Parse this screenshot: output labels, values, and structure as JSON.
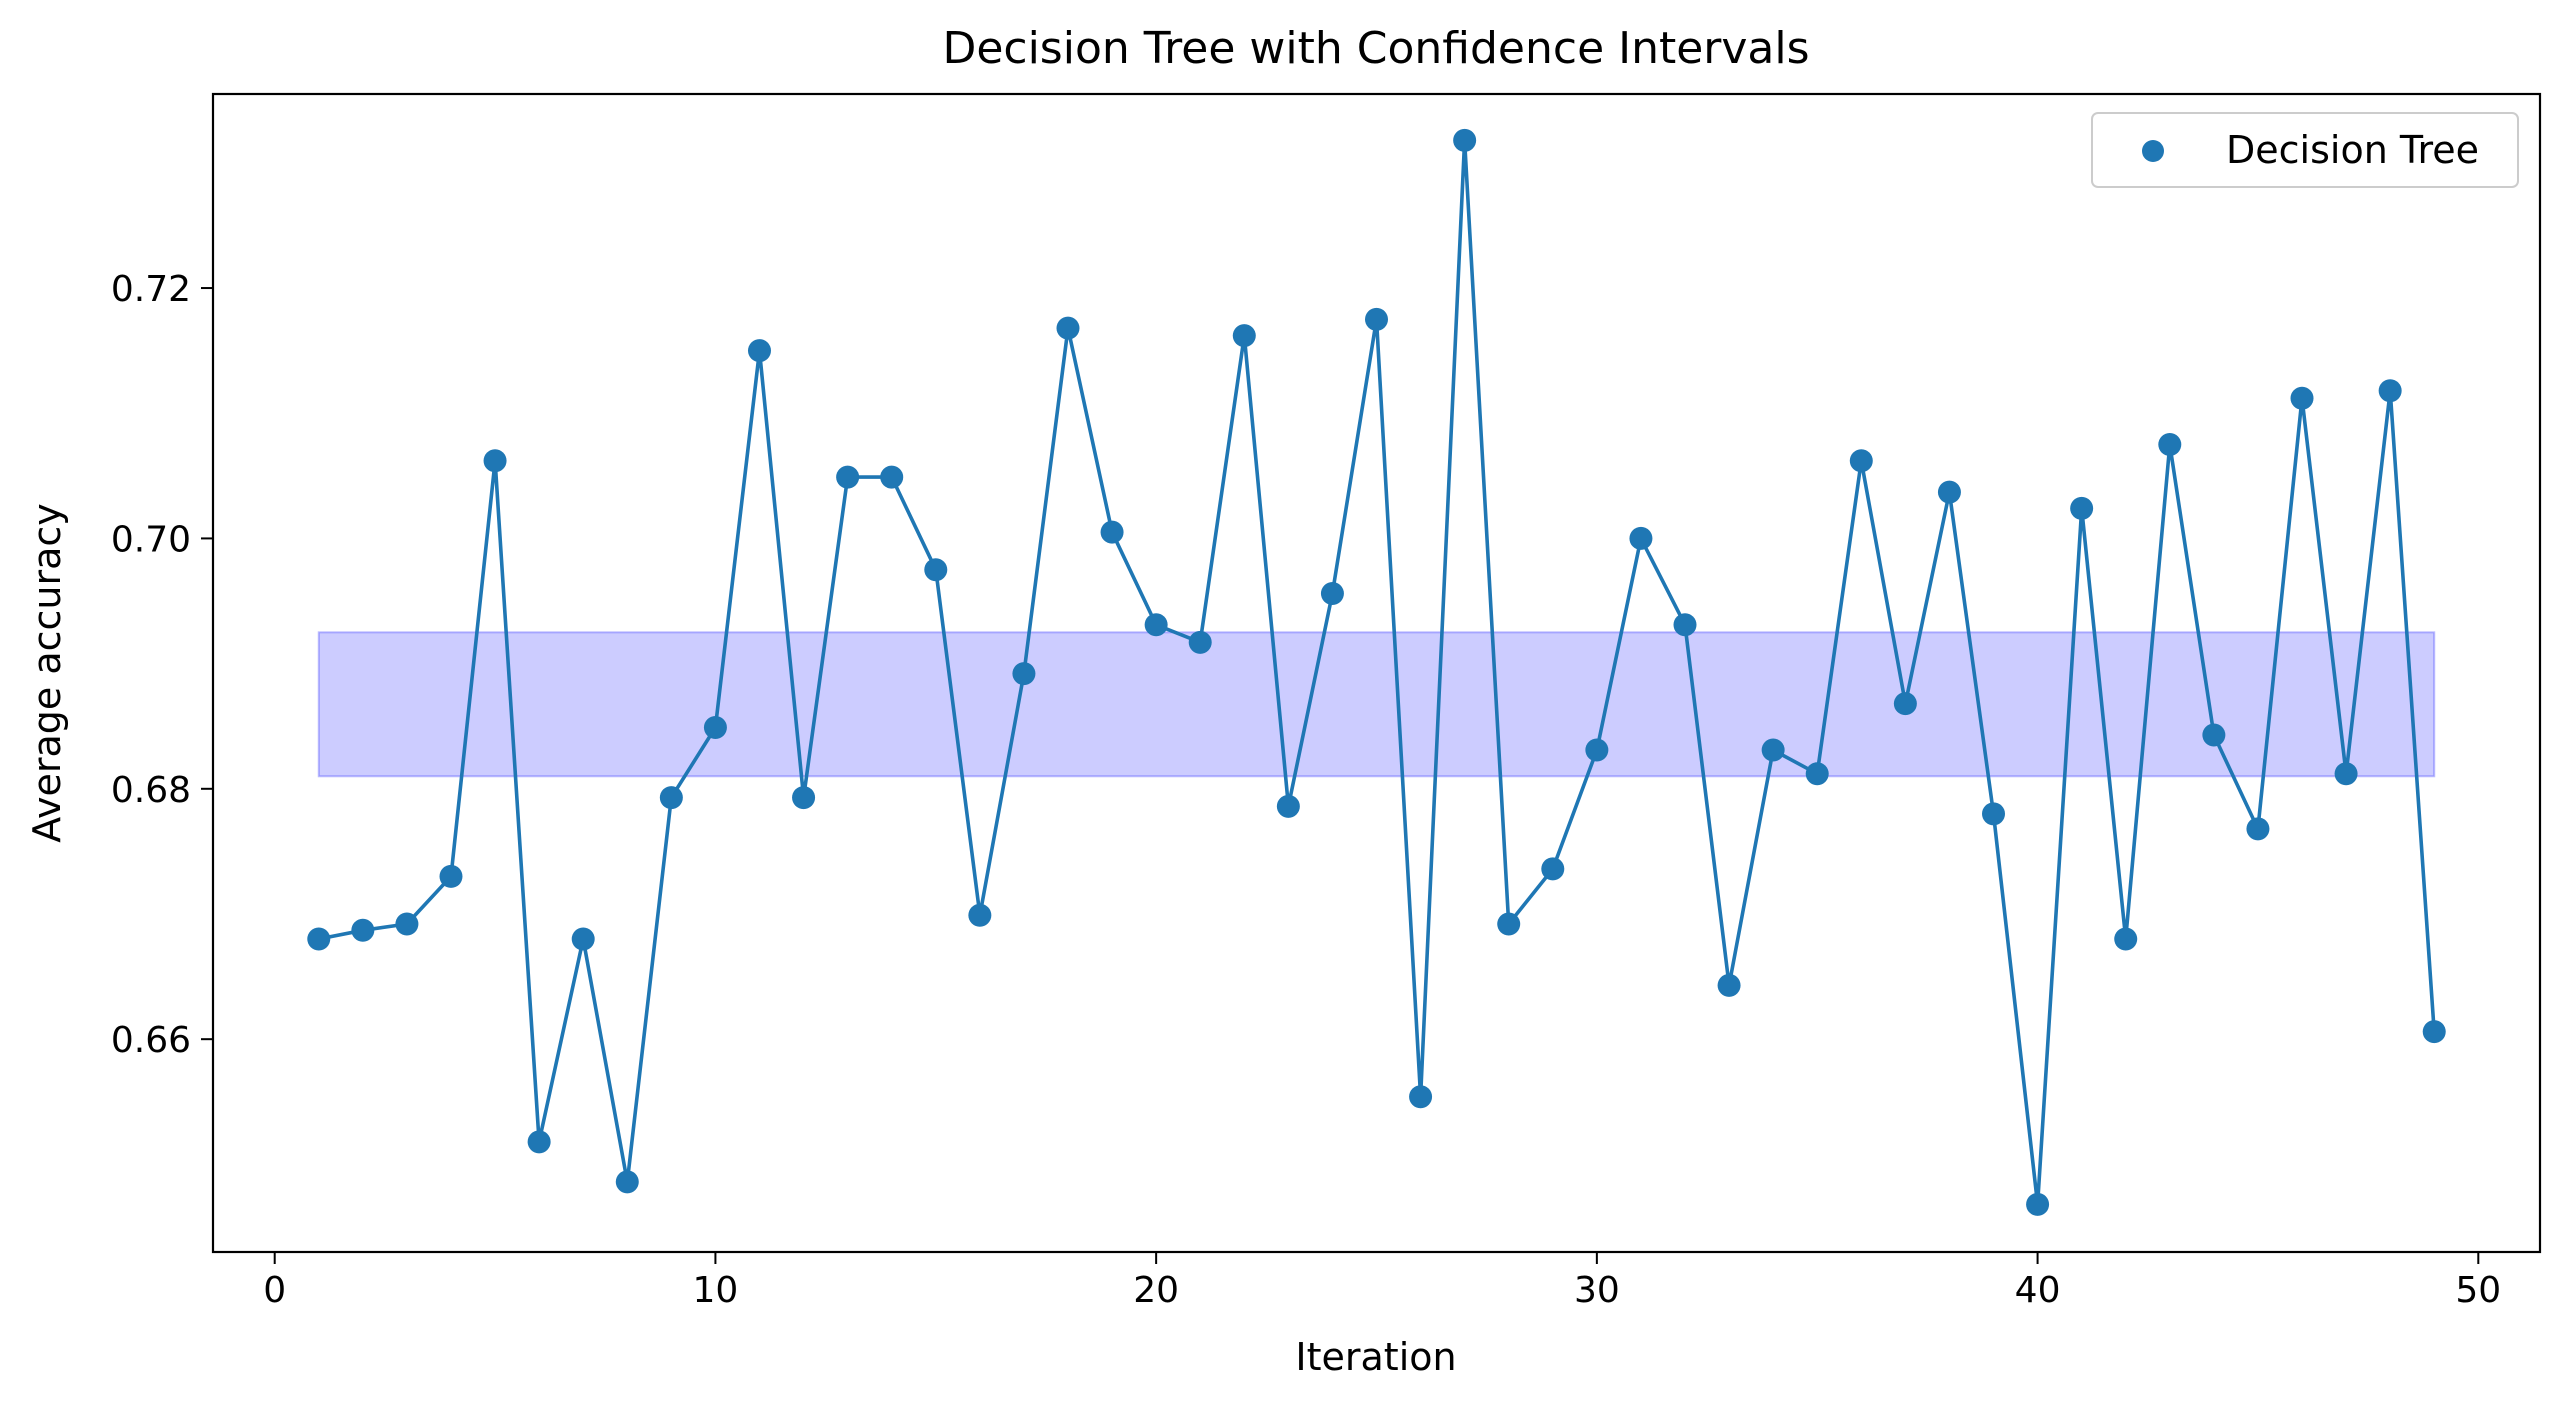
{
  "chart_data": {
    "type": "line",
    "title": "Decision Tree with Confidence Intervals",
    "xlabel": "Iteration",
    "ylabel": "Average accuracy",
    "xlim": [
      -1.4,
      51.4
    ],
    "ylim": [
      0.643,
      0.7355
    ],
    "x_ticks": [
      0,
      10,
      20,
      30,
      40,
      50
    ],
    "x_tick_labels": [
      "0",
      "10",
      "20",
      "30",
      "40",
      "50"
    ],
    "y_ticks": [
      0.66,
      0.68,
      0.7,
      0.72
    ],
    "y_tick_labels": [
      "0.66",
      "0.68",
      "0.70",
      "0.72"
    ],
    "grid": false,
    "legend": {
      "position": "top-right",
      "entries": [
        "Decision Tree"
      ]
    },
    "confidence_band": {
      "x_start": 1,
      "x_end": 49,
      "lower": 0.681,
      "upper": 0.6925,
      "color": "#0000ff"
    },
    "series": [
      {
        "name": "Decision Tree",
        "color": "#1f77b4",
        "x": [
          1,
          2,
          3,
          4,
          5,
          6,
          7,
          8,
          9,
          10,
          11,
          12,
          13,
          14,
          15,
          16,
          17,
          18,
          19,
          20,
          21,
          22,
          23,
          24,
          25,
          26,
          27,
          28,
          29,
          30,
          31,
          32,
          33,
          34,
          35,
          36,
          37,
          38,
          39,
          40,
          41,
          42,
          43,
          44,
          45,
          46,
          47,
          48,
          49
        ],
        "values": [
          0.668,
          0.6687,
          0.6692,
          0.673,
          0.7062,
          0.6518,
          0.668,
          0.6486,
          0.6793,
          0.6849,
          0.715,
          0.6793,
          0.7049,
          0.7049,
          0.6975,
          0.6699,
          0.6892,
          0.7168,
          0.7005,
          0.6931,
          0.6917,
          0.7162,
          0.6786,
          0.6956,
          0.7175,
          0.6554,
          0.7318,
          0.6692,
          0.6736,
          0.6831,
          0.7,
          0.6931,
          0.6643,
          0.6831,
          0.6812,
          0.7062,
          0.6868,
          0.7037,
          0.678,
          0.6468,
          0.7024,
          0.668,
          0.7075,
          0.6843,
          0.6768,
          0.7112,
          0.6812,
          0.7118,
          0.6606
        ]
      }
    ]
  }
}
